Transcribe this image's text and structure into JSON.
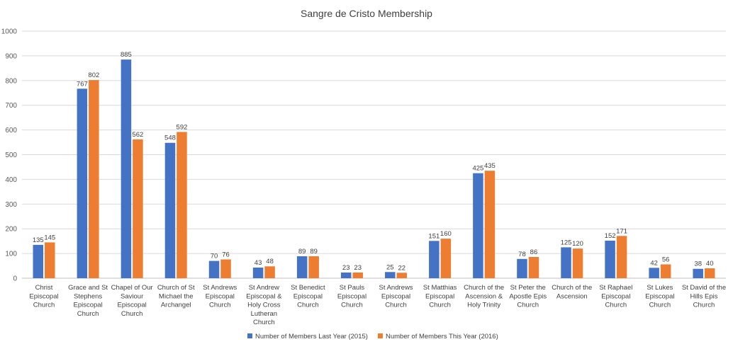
{
  "chart_data": {
    "type": "bar",
    "title": "Sangre de Cristo Membership",
    "xlabel": "",
    "ylabel": "",
    "ylim": [
      0,
      1000
    ],
    "yticks": [
      0,
      100,
      200,
      300,
      400,
      500,
      600,
      700,
      800,
      900,
      1000
    ],
    "grid": true,
    "legend_position": "bottom",
    "categories": [
      [
        "Christ",
        "Episcopal",
        "Church"
      ],
      [
        "Grace and St",
        "Stephens",
        "Episcopal",
        "Church"
      ],
      [
        "Chapel of Our",
        "Saviour",
        "Episcopal",
        "Church"
      ],
      [
        "Church of St",
        "Michael the",
        "Archangel"
      ],
      [
        "St Andrews",
        "Episcopal",
        "Church"
      ],
      [
        "St Andrew",
        "Episcopal &",
        "Holy Cross",
        "Lutheran",
        "Church"
      ],
      [
        "St Benedict",
        "Episcopal",
        "Church"
      ],
      [
        "St Pauls",
        "Episcopal",
        "Church"
      ],
      [
        "St Andrews",
        "Episcopal",
        "Church"
      ],
      [
        "St Matthias",
        "Episcopal",
        "Church"
      ],
      [
        "Church of the",
        "Ascension &",
        "Holy Trinity"
      ],
      [
        "St Peter the",
        "Apostle Epis",
        "Church"
      ],
      [
        "Church of the",
        "Ascension"
      ],
      [
        "St Raphael",
        "Episcopal",
        "Church"
      ],
      [
        "St Lukes",
        "Episcopal",
        "Church"
      ],
      [
        "St David of the",
        "Hills Epis",
        "Church"
      ]
    ],
    "series": [
      {
        "name": "Number of Members Last Year (2015)",
        "color": "#4472C4",
        "values": [
          135,
          767,
          885,
          548,
          70,
          43,
          89,
          23,
          25,
          151,
          425,
          78,
          125,
          152,
          42,
          38
        ]
      },
      {
        "name": "Number of Members This Year (2016)",
        "color": "#ED7D31",
        "values": [
          145,
          802,
          562,
          592,
          76,
          48,
          89,
          23,
          22,
          160,
          435,
          86,
          120,
          171,
          56,
          40
        ]
      }
    ]
  }
}
